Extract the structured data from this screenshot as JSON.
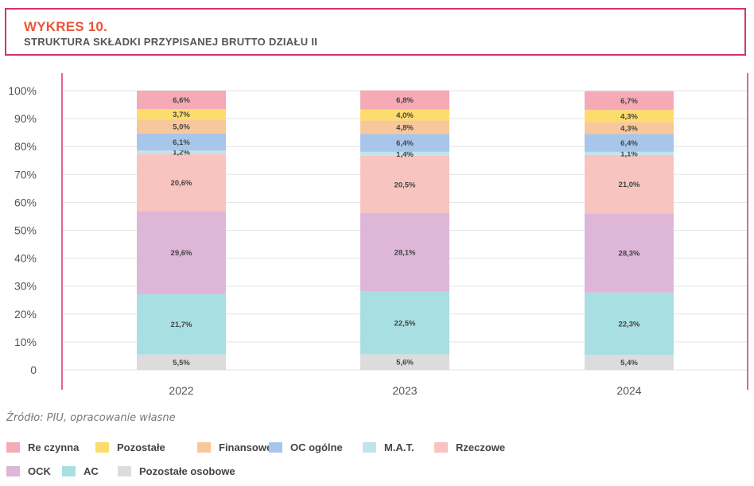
{
  "header": {
    "title": "WYKRES 10.",
    "subtitle": "STRUKTURA SKŁADKI PRZYPISANEJ BRUTTO DZIAŁU II"
  },
  "source": "Źródło: PIU, opracowanie własne",
  "chart_data": {
    "type": "bar",
    "stacked": true,
    "categories": [
      "2022",
      "2023",
      "2024"
    ],
    "y_ticks": [
      "0",
      "10%",
      "20%",
      "30%",
      "40%",
      "50%",
      "60%",
      "70%",
      "80%",
      "90%",
      "100%"
    ],
    "ylim": [
      0,
      100
    ],
    "grid": true,
    "legend_position": "bottom",
    "series": [
      {
        "name": "Pozostałe osobowe",
        "color": "#dcdcdc",
        "values": [
          5.5,
          5.6,
          5.4
        ],
        "labels": [
          "5,5%",
          "5,6%",
          "5,4%"
        ]
      },
      {
        "name": "AC",
        "color": "#a8dfe2",
        "values": [
          21.7,
          22.5,
          22.3
        ],
        "labels": [
          "21,7%",
          "22,5%",
          "22,3%"
        ]
      },
      {
        "name": "OCK",
        "color": "#ddb6d8",
        "values": [
          29.6,
          28.1,
          28.3
        ],
        "labels": [
          "29,6%",
          "28,1%",
          "28,3%"
        ]
      },
      {
        "name": "Rzeczowe",
        "color": "#f8c4c0",
        "values": [
          20.6,
          20.5,
          21.0
        ],
        "labels": [
          "20,6%",
          "20,5%",
          "21,0%"
        ]
      },
      {
        "name": "M.A.T.",
        "color": "#bfe4ec",
        "values": [
          1.2,
          1.4,
          1.1
        ],
        "labels": [
          "1,2%",
          "1,4%",
          "1,1%"
        ]
      },
      {
        "name": "OC ogólne",
        "color": "#a7c6ea",
        "values": [
          6.1,
          6.4,
          6.4
        ],
        "labels": [
          "6,1%",
          "6,4%",
          "6,4%"
        ]
      },
      {
        "name": "Finansowe",
        "color": "#f8c79b",
        "values": [
          5.0,
          4.8,
          4.3
        ],
        "labels": [
          "5,0%",
          "4,8%",
          "4,3%"
        ]
      },
      {
        "name": "Pozostałe",
        "color": "#fcdc6c",
        "values": [
          3.7,
          4.0,
          4.3
        ],
        "labels": [
          "3,7%",
          "4,0%",
          "4,3%"
        ]
      },
      {
        "name": "Re czynna",
        "color": "#f5aab6",
        "values": [
          6.6,
          6.8,
          6.7
        ],
        "labels": [
          "6,6%",
          "6,8%",
          "6,7%"
        ]
      }
    ]
  },
  "legend": {
    "items": [
      {
        "label": "Re czynna",
        "color": "#f5aab6"
      },
      {
        "label": "Pozostałe",
        "color": "#fcdc6c"
      },
      {
        "label": "Finansowe",
        "color": "#f8c79b"
      },
      {
        "label": "OC ogólne",
        "color": "#a7c6ea"
      },
      {
        "label": "M.A.T.",
        "color": "#bfe4ec"
      },
      {
        "label": "Rzeczowe",
        "color": "#f8c4c0"
      },
      {
        "label": "OCK",
        "color": "#ddb6d8"
      },
      {
        "label": "AC",
        "color": "#a8dfe2"
      },
      {
        "label": "Pozostałe osobowe",
        "color": "#dcdcdc"
      }
    ]
  }
}
